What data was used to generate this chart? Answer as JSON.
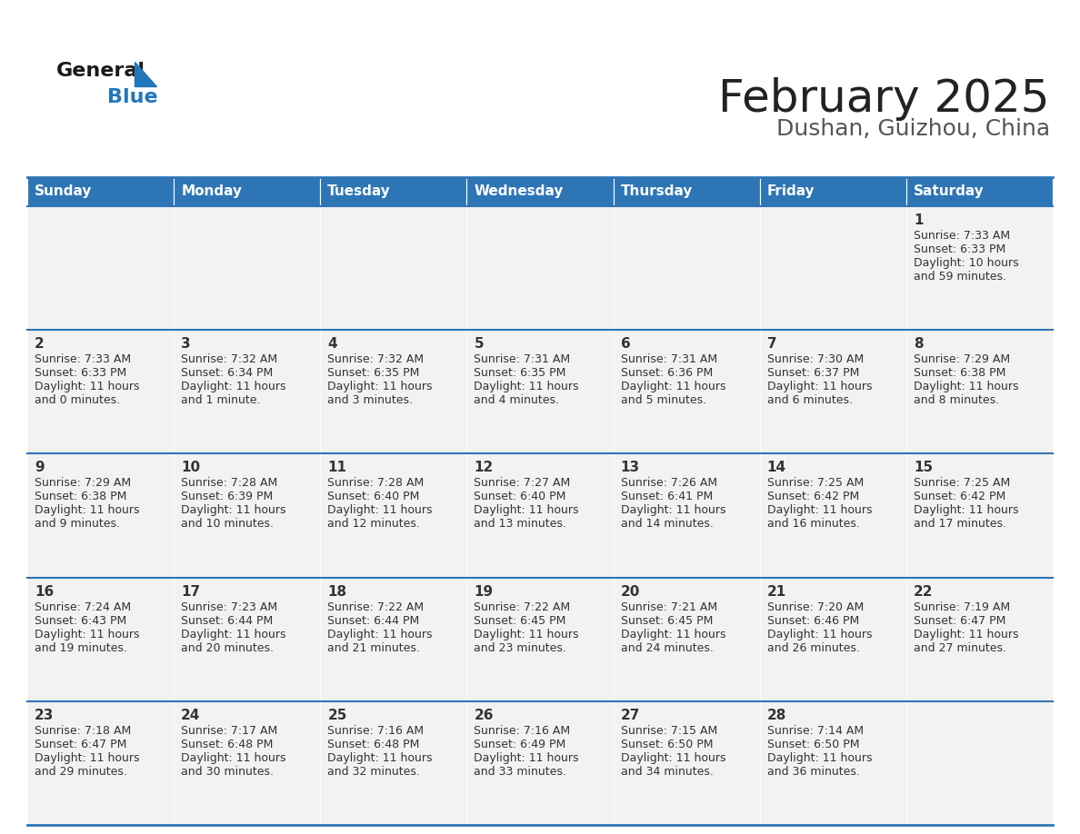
{
  "title": "February 2025",
  "subtitle": "Dushan, Guizhou, China",
  "days_of_week": [
    "Sunday",
    "Monday",
    "Tuesday",
    "Wednesday",
    "Thursday",
    "Friday",
    "Saturday"
  ],
  "header_bg": "#2e75b6",
  "header_text": "#ffffff",
  "cell_bg_odd": "#f2f2f2",
  "cell_bg_even": "#f2f2f2",
  "border_color": "#2e75b6",
  "text_color": "#333333",
  "title_color": "#222222",
  "subtitle_color": "#555555",
  "logo_general_color": "#1a1a1a",
  "logo_blue_color": "#2277bb",
  "logo_triangle_color": "#2277bb",
  "calendar_data": [
    [
      null,
      null,
      null,
      null,
      null,
      null,
      {
        "day": "1",
        "sunrise": "7:33 AM",
        "sunset": "6:33 PM",
        "daylight_h": "10 hours",
        "daylight_m": "and 59 minutes."
      }
    ],
    [
      {
        "day": "2",
        "sunrise": "7:33 AM",
        "sunset": "6:33 PM",
        "daylight_h": "11 hours",
        "daylight_m": "and 0 minutes."
      },
      {
        "day": "3",
        "sunrise": "7:32 AM",
        "sunset": "6:34 PM",
        "daylight_h": "11 hours",
        "daylight_m": "and 1 minute."
      },
      {
        "day": "4",
        "sunrise": "7:32 AM",
        "sunset": "6:35 PM",
        "daylight_h": "11 hours",
        "daylight_m": "and 3 minutes."
      },
      {
        "day": "5",
        "sunrise": "7:31 AM",
        "sunset": "6:35 PM",
        "daylight_h": "11 hours",
        "daylight_m": "and 4 minutes."
      },
      {
        "day": "6",
        "sunrise": "7:31 AM",
        "sunset": "6:36 PM",
        "daylight_h": "11 hours",
        "daylight_m": "and 5 minutes."
      },
      {
        "day": "7",
        "sunrise": "7:30 AM",
        "sunset": "6:37 PM",
        "daylight_h": "11 hours",
        "daylight_m": "and 6 minutes."
      },
      {
        "day": "8",
        "sunrise": "7:29 AM",
        "sunset": "6:38 PM",
        "daylight_h": "11 hours",
        "daylight_m": "and 8 minutes."
      }
    ],
    [
      {
        "day": "9",
        "sunrise": "7:29 AM",
        "sunset": "6:38 PM",
        "daylight_h": "11 hours",
        "daylight_m": "and 9 minutes."
      },
      {
        "day": "10",
        "sunrise": "7:28 AM",
        "sunset": "6:39 PM",
        "daylight_h": "11 hours",
        "daylight_m": "and 10 minutes."
      },
      {
        "day": "11",
        "sunrise": "7:28 AM",
        "sunset": "6:40 PM",
        "daylight_h": "11 hours",
        "daylight_m": "and 12 minutes."
      },
      {
        "day": "12",
        "sunrise": "7:27 AM",
        "sunset": "6:40 PM",
        "daylight_h": "11 hours",
        "daylight_m": "and 13 minutes."
      },
      {
        "day": "13",
        "sunrise": "7:26 AM",
        "sunset": "6:41 PM",
        "daylight_h": "11 hours",
        "daylight_m": "and 14 minutes."
      },
      {
        "day": "14",
        "sunrise": "7:25 AM",
        "sunset": "6:42 PM",
        "daylight_h": "11 hours",
        "daylight_m": "and 16 minutes."
      },
      {
        "day": "15",
        "sunrise": "7:25 AM",
        "sunset": "6:42 PM",
        "daylight_h": "11 hours",
        "daylight_m": "and 17 minutes."
      }
    ],
    [
      {
        "day": "16",
        "sunrise": "7:24 AM",
        "sunset": "6:43 PM",
        "daylight_h": "11 hours",
        "daylight_m": "and 19 minutes."
      },
      {
        "day": "17",
        "sunrise": "7:23 AM",
        "sunset": "6:44 PM",
        "daylight_h": "11 hours",
        "daylight_m": "and 20 minutes."
      },
      {
        "day": "18",
        "sunrise": "7:22 AM",
        "sunset": "6:44 PM",
        "daylight_h": "11 hours",
        "daylight_m": "and 21 minutes."
      },
      {
        "day": "19",
        "sunrise": "7:22 AM",
        "sunset": "6:45 PM",
        "daylight_h": "11 hours",
        "daylight_m": "and 23 minutes."
      },
      {
        "day": "20",
        "sunrise": "7:21 AM",
        "sunset": "6:45 PM",
        "daylight_h": "11 hours",
        "daylight_m": "and 24 minutes."
      },
      {
        "day": "21",
        "sunrise": "7:20 AM",
        "sunset": "6:46 PM",
        "daylight_h": "11 hours",
        "daylight_m": "and 26 minutes."
      },
      {
        "day": "22",
        "sunrise": "7:19 AM",
        "sunset": "6:47 PM",
        "daylight_h": "11 hours",
        "daylight_m": "and 27 minutes."
      }
    ],
    [
      {
        "day": "23",
        "sunrise": "7:18 AM",
        "sunset": "6:47 PM",
        "daylight_h": "11 hours",
        "daylight_m": "and 29 minutes."
      },
      {
        "day": "24",
        "sunrise": "7:17 AM",
        "sunset": "6:48 PM",
        "daylight_h": "11 hours",
        "daylight_m": "and 30 minutes."
      },
      {
        "day": "25",
        "sunrise": "7:16 AM",
        "sunset": "6:48 PM",
        "daylight_h": "11 hours",
        "daylight_m": "and 32 minutes."
      },
      {
        "day": "26",
        "sunrise": "7:16 AM",
        "sunset": "6:49 PM",
        "daylight_h": "11 hours",
        "daylight_m": "and 33 minutes."
      },
      {
        "day": "27",
        "sunrise": "7:15 AM",
        "sunset": "6:50 PM",
        "daylight_h": "11 hours",
        "daylight_m": "and 34 minutes."
      },
      {
        "day": "28",
        "sunrise": "7:14 AM",
        "sunset": "6:50 PM",
        "daylight_h": "11 hours",
        "daylight_m": "and 36 minutes."
      },
      null
    ]
  ]
}
